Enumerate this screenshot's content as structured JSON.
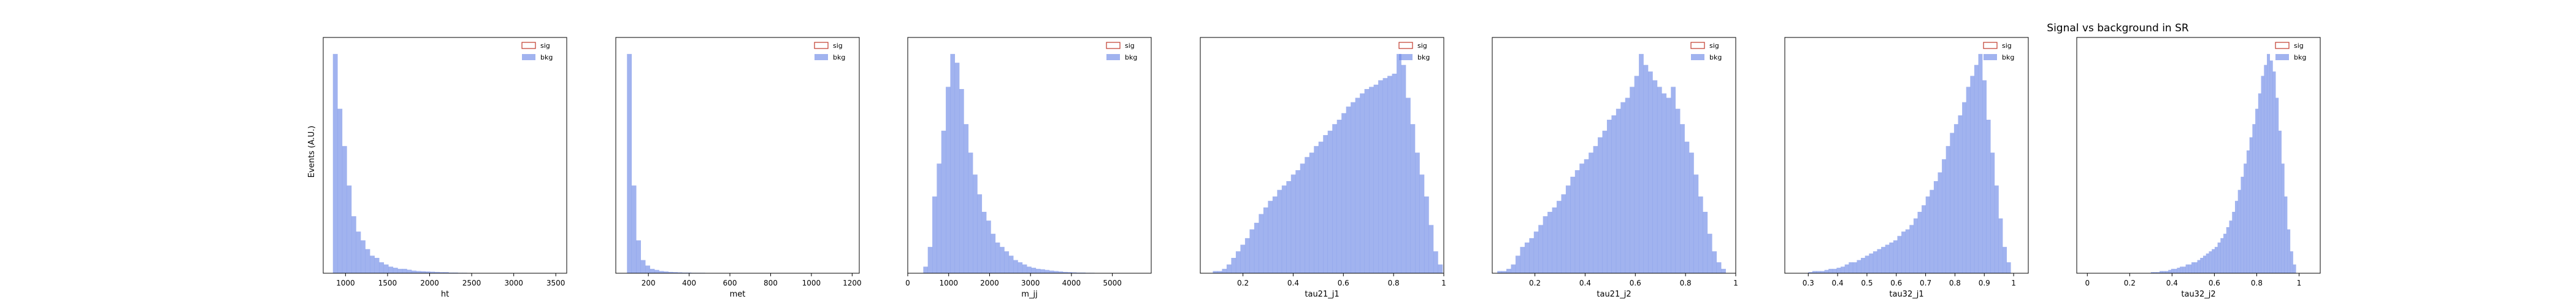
{
  "figure": {
    "title": "Signal vs background in SR",
    "ylabel": "Events (A.U.)"
  },
  "colors": {
    "sig": "#c0392b",
    "bkg": "#6f8ae6"
  },
  "chart_data": [
    {
      "type": "bar",
      "xlabel": "ht",
      "xlim": [
        735,
        3630
      ],
      "xticks": [
        1000,
        1500,
        2000,
        2500,
        3000,
        3500
      ],
      "legend": [
        "sig",
        "bkg"
      ],
      "legend_position": "top-right",
      "series": [
        {
          "name": "sig",
          "values": []
        },
        {
          "name": "bkg",
          "bin_start": 850,
          "bin_width": 55,
          "values": [
            100,
            75,
            58,
            40,
            26,
            19,
            15,
            11,
            8,
            7,
            5,
            4,
            3,
            2.5,
            2,
            2,
            1.6,
            1.2,
            1,
            0.9,
            0.8,
            0.7,
            0.6,
            0.5,
            0.5,
            0.3,
            0.3,
            0.2,
            0.2,
            0.1,
            0.1,
            0.1,
            0.05,
            0.05,
            0.05,
            0.05,
            0.05,
            0.05,
            0.05,
            0.05,
            0.05,
            0.05,
            0.05,
            0.05,
            0.05,
            0.05,
            0.05,
            0.05,
            0.05,
            0.05
          ]
        }
      ]
    },
    {
      "type": "bar",
      "xlabel": "met",
      "xlim": [
        40,
        1235
      ],
      "xticks": [
        200,
        400,
        600,
        800,
        1000,
        1200
      ],
      "legend": [
        "sig",
        "bkg"
      ],
      "legend_position": "top-right",
      "series": [
        {
          "name": "sig",
          "values": []
        },
        {
          "name": "bkg",
          "bin_start": 95,
          "bin_width": 22.5,
          "values": [
            100,
            40,
            15,
            6,
            3.5,
            2,
            1.5,
            1,
            0.8,
            0.6,
            0.5,
            0.4,
            0.3,
            0.3,
            0.2,
            0.2,
            0.2,
            0.1,
            0.1,
            0.1,
            0.1,
            0.1,
            0.1,
            0.1,
            0.1,
            0.1,
            0.1,
            0.1,
            0.1,
            0.1,
            0.05,
            0.05,
            0.05,
            0.05,
            0.05,
            0.05,
            0.05,
            0.05,
            0.05,
            0.05,
            0.05,
            0.05,
            0.05,
            0.05,
            0.05,
            0.05,
            0.05,
            0.05,
            0.05,
            0.05
          ]
        }
      ]
    },
    {
      "type": "bar",
      "xlabel": "m_jj",
      "xlim": [
        0,
        5950
      ],
      "xticks": [
        0,
        1000,
        2000,
        3000,
        4000,
        5000
      ],
      "legend": [
        "sig",
        "bkg"
      ],
      "legend_position": "top-right",
      "series": [
        {
          "name": "sig",
          "values": []
        },
        {
          "name": "bkg",
          "bin_start": 380,
          "bin_width": 110,
          "values": [
            3,
            12,
            35,
            50,
            65,
            85,
            100,
            96,
            84,
            68,
            55,
            45,
            36,
            28,
            24,
            18,
            14,
            12,
            10,
            8,
            6,
            5,
            4,
            3,
            2.5,
            2,
            1.8,
            1.5,
            1.2,
            1,
            0.8,
            0.6,
            0.5,
            0.4,
            0.3,
            0.3,
            0.2,
            0.2,
            0.1,
            0.1,
            0.1,
            0.1,
            0.1,
            0.05,
            0.05,
            0.05,
            0.05,
            0.05,
            0.05,
            0.05
          ]
        }
      ]
    },
    {
      "type": "bar",
      "xlabel": "tau21_j1",
      "xlim": [
        0.03,
        1.0
      ],
      "xticks": [
        0.2,
        0.4,
        0.6,
        0.8,
        1.0
      ],
      "legend": [
        "sig",
        "bkg"
      ],
      "legend_position": "top-right",
      "series": [
        {
          "name": "sig",
          "values": []
        },
        {
          "name": "bkg",
          "bin_start": 0.08,
          "bin_width": 0.0183,
          "values": [
            1,
            1,
            2,
            4,
            7,
            10,
            13,
            16,
            20,
            23,
            27,
            30,
            33,
            35,
            38,
            40,
            42,
            45,
            47,
            50,
            53,
            55,
            58,
            60,
            63,
            65,
            68,
            70,
            73,
            76,
            78,
            80,
            82,
            84,
            85,
            86,
            88,
            89,
            90,
            91,
            100,
            95,
            80,
            68,
            55,
            45,
            35,
            22,
            10,
            4
          ]
        }
      ]
    },
    {
      "type": "bar",
      "xlabel": "tau21_j2",
      "xlim": [
        0.03,
        1.0
      ],
      "xticks": [
        0.2,
        0.4,
        0.6,
        0.8,
        1.0
      ],
      "legend": [
        "sig",
        "bkg"
      ],
      "legend_position": "top-right",
      "series": [
        {
          "name": "sig",
          "values": []
        },
        {
          "name": "bkg",
          "bin_start": 0.05,
          "bin_width": 0.0182,
          "values": [
            1,
            1,
            2,
            4,
            8,
            12,
            14,
            16,
            19,
            22,
            26,
            28,
            30,
            33,
            36,
            40,
            44,
            47,
            50,
            52,
            55,
            58,
            62,
            65,
            70,
            72,
            75,
            78,
            80,
            85,
            90,
            100,
            95,
            92,
            88,
            85,
            82,
            80,
            85,
            75,
            68,
            60,
            55,
            45,
            35,
            28,
            18,
            10,
            5,
            2
          ]
        }
      ]
    },
    {
      "type": "bar",
      "xlabel": "tau32_j1",
      "xlim": [
        0.22,
        1.05
      ],
      "xticks": [
        0.3,
        0.4,
        0.5,
        0.6,
        0.7,
        0.8,
        0.9,
        1.0
      ],
      "legend": [
        "sig",
        "bkg"
      ],
      "legend_position": "top-right",
      "series": [
        {
          "name": "sig",
          "values": []
        },
        {
          "name": "bkg",
          "bin_start": 0.3,
          "bin_width": 0.0138,
          "values": [
            0.5,
            1,
            1,
            1,
            1.5,
            2,
            2,
            2.5,
            3,
            4,
            5,
            5,
            6,
            7,
            8,
            9,
            10,
            11,
            12,
            13,
            14,
            15,
            17,
            19,
            20,
            22,
            25,
            28,
            31,
            35,
            38,
            42,
            46,
            52,
            58,
            64,
            68,
            72,
            78,
            85,
            90,
            95,
            100,
            88,
            70,
            55,
            40,
            25,
            12,
            5
          ]
        }
      ]
    },
    {
      "type": "bar",
      "xlabel": "tau32_j2",
      "xlim": [
        -0.05,
        1.1
      ],
      "xticks": [
        0.0,
        0.2,
        0.4,
        0.6,
        0.8,
        1.0
      ],
      "legend": [
        "sig",
        "bkg"
      ],
      "legend_position": "top-right",
      "series": [
        {
          "name": "sig",
          "values": []
        },
        {
          "name": "bkg",
          "bin_start": 0.3,
          "bin_width": 0.0137,
          "values": [
            0.5,
            0.5,
            0.5,
            1,
            1,
            1,
            1.5,
            2,
            2,
            2.5,
            3,
            3,
            4,
            4,
            5,
            5,
            6,
            7,
            8,
            9,
            10,
            11,
            12,
            14,
            16,
            18,
            21,
            24,
            28,
            33,
            38,
            44,
            50,
            56,
            62,
            68,
            75,
            82,
            90,
            95,
            100,
            97,
            92,
            80,
            65,
            50,
            35,
            20,
            10,
            4
          ]
        }
      ]
    }
  ]
}
